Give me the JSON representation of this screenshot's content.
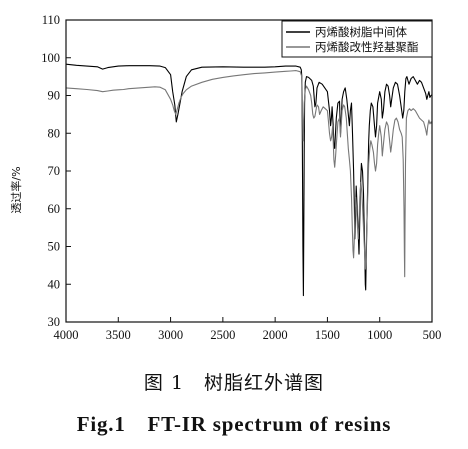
{
  "chart_data": {
    "type": "line",
    "title": "",
    "xlabel": "",
    "ylabel": "透过率/%",
    "xlim": [
      4000,
      500
    ],
    "ylim": [
      30,
      110
    ],
    "x_ticks": [
      4000,
      3500,
      3000,
      2500,
      2000,
      1500,
      1000,
      500
    ],
    "y_ticks": [
      30,
      40,
      50,
      60,
      70,
      80,
      90,
      100,
      110
    ],
    "legend_position": "top-right",
    "series": [
      {
        "name": "丙烯酸树脂中间体",
        "color": "#000000",
        "points": [
          [
            4000,
            98.3
          ],
          [
            3900,
            98.0
          ],
          [
            3800,
            97.8
          ],
          [
            3700,
            97.6
          ],
          [
            3650,
            97.0
          ],
          [
            3600,
            97.4
          ],
          [
            3500,
            97.8
          ],
          [
            3400,
            97.9
          ],
          [
            3300,
            97.9
          ],
          [
            3200,
            97.9
          ],
          [
            3100,
            97.8
          ],
          [
            3050,
            97.4
          ],
          [
            3000,
            95.5
          ],
          [
            2980,
            91.0
          ],
          [
            2960,
            87.5
          ],
          [
            2945,
            83.0
          ],
          [
            2930,
            85.0
          ],
          [
            2910,
            88.0
          ],
          [
            2890,
            91.0
          ],
          [
            2870,
            93.0
          ],
          [
            2850,
            95.0
          ],
          [
            2800,
            96.8
          ],
          [
            2700,
            97.5
          ],
          [
            2500,
            97.6
          ],
          [
            2300,
            97.5
          ],
          [
            2100,
            97.5
          ],
          [
            2000,
            97.6
          ],
          [
            1900,
            97.8
          ],
          [
            1800,
            97.8
          ],
          [
            1760,
            97.5
          ],
          [
            1750,
            96.8
          ],
          [
            1745,
            95.0
          ],
          [
            1742,
            88.0
          ],
          [
            1738,
            70.0
          ],
          [
            1735,
            50.0
          ],
          [
            1730,
            37.0
          ],
          [
            1726,
            55.0
          ],
          [
            1722,
            75.0
          ],
          [
            1718,
            88.0
          ],
          [
            1712,
            93.5
          ],
          [
            1700,
            95.0
          ],
          [
            1680,
            94.8
          ],
          [
            1650,
            94.0
          ],
          [
            1635,
            92.5
          ],
          [
            1620,
            87.0
          ],
          [
            1610,
            88.0
          ],
          [
            1600,
            92.0
          ],
          [
            1580,
            93.5
          ],
          [
            1550,
            93.0
          ],
          [
            1500,
            91.0
          ],
          [
            1480,
            86.0
          ],
          [
            1470,
            82.0
          ],
          [
            1462,
            84.0
          ],
          [
            1455,
            87.0
          ],
          [
            1445,
            82.0
          ],
          [
            1438,
            77.0
          ],
          [
            1430,
            76.0
          ],
          [
            1425,
            79.0
          ],
          [
            1415,
            84.0
          ],
          [
            1400,
            88.0
          ],
          [
            1385,
            88.5
          ],
          [
            1375,
            80.0
          ],
          [
            1368,
            83.0
          ],
          [
            1360,
            89.0
          ],
          [
            1345,
            91.0
          ],
          [
            1330,
            92.0
          ],
          [
            1315,
            89.0
          ],
          [
            1300,
            85.0
          ],
          [
            1290,
            82.0
          ],
          [
            1280,
            86.0
          ],
          [
            1270,
            88.0
          ],
          [
            1260,
            80.0
          ],
          [
            1250,
            70.0
          ],
          [
            1242,
            60.0
          ],
          [
            1238,
            52.0
          ],
          [
            1232,
            58.0
          ],
          [
            1225,
            66.0
          ],
          [
            1215,
            60.0
          ],
          [
            1205,
            53.0
          ],
          [
            1198,
            48.0
          ],
          [
            1192,
            55.0
          ],
          [
            1185,
            65.0
          ],
          [
            1175,
            72.0
          ],
          [
            1165,
            70.0
          ],
          [
            1155,
            64.0
          ],
          [
            1148,
            55.0
          ],
          [
            1142,
            46.0
          ],
          [
            1138,
            40.0
          ],
          [
            1134,
            38.5
          ],
          [
            1128,
            48.0
          ],
          [
            1120,
            60.0
          ],
          [
            1112,
            70.0
          ],
          [
            1105,
            78.0
          ],
          [
            1100,
            82.0
          ],
          [
            1090,
            86.0
          ],
          [
            1080,
            88.0
          ],
          [
            1065,
            87.0
          ],
          [
            1050,
            82.0
          ],
          [
            1040,
            79.0
          ],
          [
            1030,
            82.0
          ],
          [
            1020,
            88.0
          ],
          [
            1000,
            91.0
          ],
          [
            985,
            89.0
          ],
          [
            975,
            84.0
          ],
          [
            965,
            86.0
          ],
          [
            950,
            91.0
          ],
          [
            935,
            93.0
          ],
          [
            920,
            92.5
          ],
          [
            905,
            90.0
          ],
          [
            895,
            87.0
          ],
          [
            885,
            89.0
          ],
          [
            870,
            92.0
          ],
          [
            850,
            93.5
          ],
          [
            830,
            93.0
          ],
          [
            810,
            90.0
          ],
          [
            790,
            86.0
          ],
          [
            780,
            84.0
          ],
          [
            770,
            86.0
          ],
          [
            760,
            91.0
          ],
          [
            750,
            94.5
          ],
          [
            740,
            95.0
          ],
          [
            730,
            94.0
          ],
          [
            720,
            93.0
          ],
          [
            700,
            94.5
          ],
          [
            680,
            95.0
          ],
          [
            660,
            94.0
          ],
          [
            640,
            93.0
          ],
          [
            620,
            94.0
          ],
          [
            600,
            93.5
          ],
          [
            580,
            92.0
          ],
          [
            560,
            90.5
          ],
          [
            550,
            89.0
          ],
          [
            540,
            90.0
          ],
          [
            530,
            91.0
          ],
          [
            520,
            89.5
          ],
          [
            510,
            90.0
          ],
          [
            500,
            90.2
          ]
        ]
      },
      {
        "name": "丙烯酸改性羟基聚酯",
        "color": "#777777",
        "points": [
          [
            4000,
            92.0
          ],
          [
            3900,
            91.8
          ],
          [
            3800,
            91.6
          ],
          [
            3700,
            91.3
          ],
          [
            3650,
            91.0
          ],
          [
            3600,
            91.2
          ],
          [
            3550,
            91.4
          ],
          [
            3500,
            91.5
          ],
          [
            3450,
            91.6
          ],
          [
            3400,
            91.8
          ],
          [
            3350,
            91.9
          ],
          [
            3300,
            92.0
          ],
          [
            3250,
            92.1
          ],
          [
            3200,
            92.2
          ],
          [
            3150,
            92.3
          ],
          [
            3100,
            92.2
          ],
          [
            3050,
            91.5
          ],
          [
            3000,
            89.0
          ],
          [
            2980,
            87.5
          ],
          [
            2965,
            86.0
          ],
          [
            2950,
            85.0
          ],
          [
            2935,
            86.5
          ],
          [
            2920,
            88.0
          ],
          [
            2900,
            89.5
          ],
          [
            2880,
            90.5
          ],
          [
            2850,
            91.5
          ],
          [
            2800,
            92.5
          ],
          [
            2700,
            93.5
          ],
          [
            2600,
            94.3
          ],
          [
            2500,
            94.8
          ],
          [
            2400,
            95.2
          ],
          [
            2300,
            95.5
          ],
          [
            2200,
            95.8
          ],
          [
            2100,
            96.0
          ],
          [
            2000,
            96.2
          ],
          [
            1900,
            96.4
          ],
          [
            1850,
            96.5
          ],
          [
            1800,
            96.6
          ],
          [
            1760,
            96.3
          ],
          [
            1745,
            95.0
          ],
          [
            1742,
            92.0
          ],
          [
            1738,
            85.0
          ],
          [
            1733,
            78.0
          ],
          [
            1728,
            82.0
          ],
          [
            1722,
            88.0
          ],
          [
            1712,
            91.5
          ],
          [
            1700,
            92.5
          ],
          [
            1680,
            91.5
          ],
          [
            1660,
            90.0
          ],
          [
            1650,
            88.0
          ],
          [
            1640,
            85.0
          ],
          [
            1630,
            84.0
          ],
          [
            1620,
            84.5
          ],
          [
            1610,
            86.0
          ],
          [
            1600,
            87.5
          ],
          [
            1585,
            87.0
          ],
          [
            1575,
            85.0
          ],
          [
            1560,
            86.0
          ],
          [
            1540,
            87.0
          ],
          [
            1520,
            86.5
          ],
          [
            1500,
            86.0
          ],
          [
            1490,
            83.0
          ],
          [
            1480,
            80.0
          ],
          [
            1470,
            78.0
          ],
          [
            1460,
            79.0
          ],
          [
            1450,
            82.0
          ],
          [
            1445,
            78.0
          ],
          [
            1438,
            73.0
          ],
          [
            1430,
            71.0
          ],
          [
            1422,
            74.0
          ],
          [
            1412,
            78.0
          ],
          [
            1400,
            83.0
          ],
          [
            1385,
            84.0
          ],
          [
            1375,
            79.0
          ],
          [
            1368,
            82.0
          ],
          [
            1360,
            86.0
          ],
          [
            1345,
            87.5
          ],
          [
            1335,
            87.0
          ],
          [
            1320,
            84.0
          ],
          [
            1310,
            80.0
          ],
          [
            1300,
            76.0
          ],
          [
            1290,
            73.0
          ],
          [
            1280,
            70.0
          ],
          [
            1270,
            63.0
          ],
          [
            1262,
            55.0
          ],
          [
            1255,
            49.0
          ],
          [
            1250,
            47.0
          ],
          [
            1244,
            51.0
          ],
          [
            1238,
            57.0
          ],
          [
            1230,
            63.0
          ],
          [
            1220,
            60.0
          ],
          [
            1212,
            55.0
          ],
          [
            1205,
            52.0
          ],
          [
            1198,
            56.0
          ],
          [
            1190,
            63.0
          ],
          [
            1180,
            67.0
          ],
          [
            1170,
            64.0
          ],
          [
            1160,
            58.0
          ],
          [
            1150,
            52.0
          ],
          [
            1142,
            47.0
          ],
          [
            1137,
            44.0
          ],
          [
            1132,
            46.0
          ],
          [
            1125,
            54.0
          ],
          [
            1115,
            63.0
          ],
          [
            1105,
            72.0
          ],
          [
            1095,
            76.0
          ],
          [
            1085,
            78.0
          ],
          [
            1075,
            77.0
          ],
          [
            1060,
            75.0
          ],
          [
            1050,
            72.0
          ],
          [
            1040,
            70.0
          ],
          [
            1030,
            72.0
          ],
          [
            1020,
            77.0
          ],
          [
            1010,
            80.0
          ],
          [
            1000,
            82.0
          ],
          [
            985,
            79.0
          ],
          [
            975,
            74.0
          ],
          [
            965,
            77.0
          ],
          [
            950,
            81.0
          ],
          [
            935,
            83.0
          ],
          [
            920,
            82.0
          ],
          [
            905,
            78.0
          ],
          [
            895,
            75.0
          ],
          [
            885,
            77.0
          ],
          [
            870,
            81.0
          ],
          [
            855,
            83.5
          ],
          [
            840,
            84.0
          ],
          [
            825,
            83.0
          ],
          [
            810,
            81.0
          ],
          [
            795,
            80.0
          ],
          [
            785,
            79.0
          ],
          [
            775,
            73.0
          ],
          [
            768,
            60.0
          ],
          [
            764,
            48.0
          ],
          [
            761,
            42.0
          ],
          [
            758,
            55.0
          ],
          [
            753,
            72.0
          ],
          [
            745,
            84.0
          ],
          [
            730,
            86.0
          ],
          [
            715,
            86.5
          ],
          [
            700,
            86.0
          ],
          [
            680,
            86.5
          ],
          [
            660,
            86.0
          ],
          [
            640,
            85.0
          ],
          [
            620,
            84.0
          ],
          [
            600,
            83.5
          ],
          [
            580,
            83.0
          ],
          [
            560,
            81.0
          ],
          [
            550,
            79.5
          ],
          [
            540,
            82.0
          ],
          [
            530,
            83.5
          ],
          [
            520,
            82.5
          ],
          [
            510,
            83.0
          ],
          [
            500,
            82.5
          ]
        ]
      }
    ]
  },
  "caption": {
    "chinese": "图 1　树脂红外谱图",
    "english": "Fig.1　FT-IR spectrum of resins"
  }
}
